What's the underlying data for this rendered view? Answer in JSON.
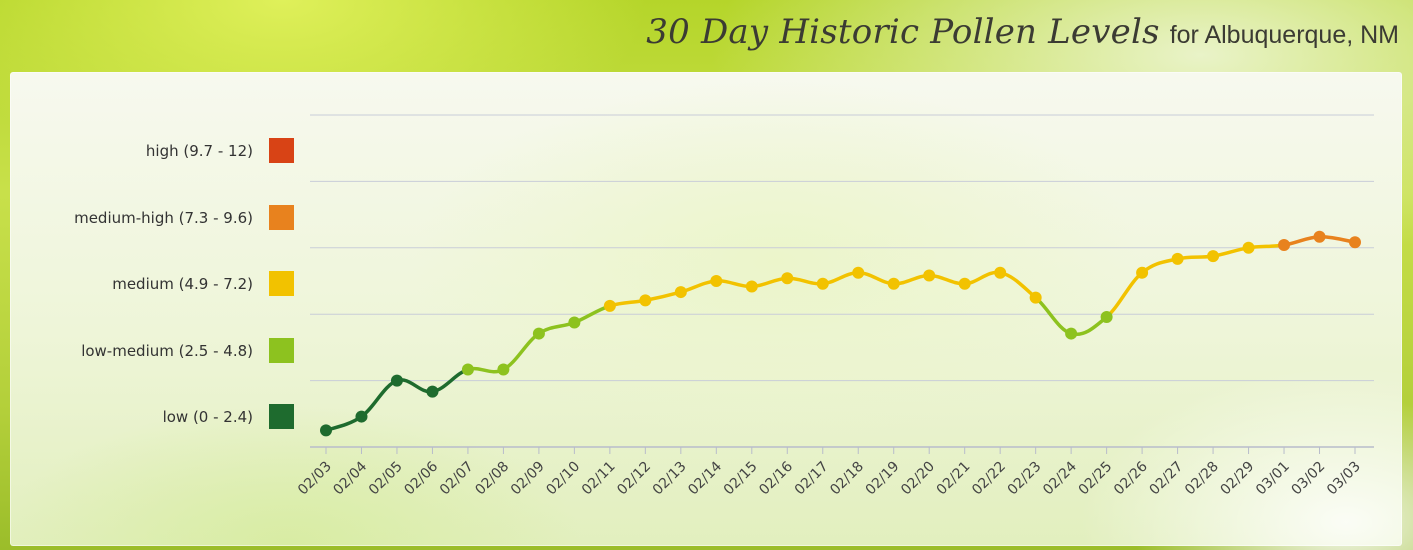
{
  "header": {
    "title": "30 Day Historic Pollen Levels",
    "subtitle": "for Albuquerque, NM"
  },
  "legend": {
    "items": [
      {
        "label": "high (9.7 - 12)",
        "color": "#d84315"
      },
      {
        "label": "medium-high (7.3 - 9.6)",
        "color": "#e8821e"
      },
      {
        "label": "medium (4.9 - 7.2)",
        "color": "#f2c200"
      },
      {
        "label": "low-medium (2.5 - 4.8)",
        "color": "#8dc21f"
      },
      {
        "label": "low (0 - 2.4)",
        "color": "#1e6b2e"
      }
    ]
  },
  "chart_data": {
    "type": "line",
    "title": "30 Day Historic Pollen Levels",
    "subtitle": "for Albuquerque, NM",
    "xlabel": "",
    "ylabel": "",
    "ylim": [
      0,
      12
    ],
    "grid": true,
    "legend_position": "left",
    "categories": [
      "02/03",
      "02/04",
      "02/05",
      "02/06",
      "02/07",
      "02/08",
      "02/09",
      "02/10",
      "02/11",
      "02/12",
      "02/13",
      "02/14",
      "02/15",
      "02/16",
      "02/17",
      "02/18",
      "02/19",
      "02/20",
      "02/21",
      "02/22",
      "02/23",
      "02/24",
      "02/25",
      "02/26",
      "02/27",
      "02/28",
      "02/29",
      "03/01",
      "03/02",
      "03/03"
    ],
    "values": [
      0.6,
      1.1,
      2.4,
      2.0,
      2.8,
      2.8,
      4.1,
      4.5,
      5.1,
      5.3,
      5.6,
      6.0,
      5.8,
      6.1,
      5.9,
      6.3,
      5.9,
      6.2,
      5.9,
      6.3,
      5.4,
      4.1,
      4.7,
      6.3,
      6.8,
      6.9,
      7.2,
      7.3,
      7.6,
      7.4
    ],
    "levels": [
      {
        "name": "low",
        "min": 0,
        "max": 2.4,
        "color": "#1e6b2e"
      },
      {
        "name": "low-medium",
        "min": 2.5,
        "max": 4.8,
        "color": "#8dc21f"
      },
      {
        "name": "medium",
        "min": 4.9,
        "max": 7.2,
        "color": "#f2c200"
      },
      {
        "name": "medium-high",
        "min": 7.3,
        "max": 9.6,
        "color": "#e8821e"
      },
      {
        "name": "high",
        "min": 9.7,
        "max": 12,
        "color": "#d84315"
      }
    ],
    "grid_color": "#c9cdd8",
    "axis_color": "#b8bccb"
  }
}
